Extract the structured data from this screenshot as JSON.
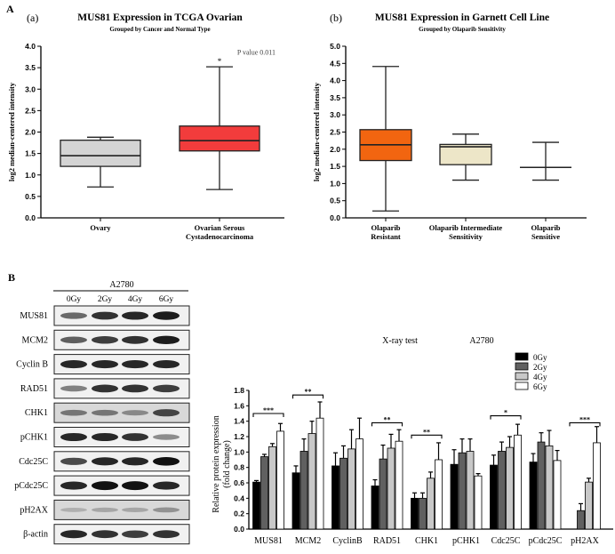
{
  "panel_labels": {
    "a": "A",
    "b": "B"
  },
  "chart_data": [
    {
      "type": "box",
      "tag": "(a)",
      "title": "MUS81 Expression in TCGA Ovarian",
      "subtitle": "Grouped by Cancer and Normal Type",
      "ylabel": "log2 median-centered intensity",
      "ylim": [
        0,
        4
      ],
      "yticks": [
        "0.0",
        "0.5",
        "1.0",
        "1.5",
        "2.0",
        "2.5",
        "3.0",
        "3.5",
        "4.0"
      ],
      "annotation": "P value 0.011",
      "groups": [
        {
          "label": [
            "Ovary"
          ],
          "min": 0.72,
          "q1": 1.2,
          "median": 1.45,
          "q3": 1.81,
          "max": 1.88,
          "color": "#d4d4d4"
        },
        {
          "label": [
            "Ovarian Serous",
            "Cystadenocarcinoma"
          ],
          "min": 0.66,
          "q1": 1.56,
          "median": 1.8,
          "q3": 2.14,
          "max": 3.52,
          "color": "#f23c3c",
          "sig": "*"
        }
      ]
    },
    {
      "type": "box",
      "tag": "(b)",
      "title": "MUS81 Expression in Garnett Cell Line",
      "subtitle": "Grouped by Olaparib Sensitivity",
      "ylabel": "log2 median-centered intensity",
      "ylim": [
        0,
        5
      ],
      "yticks": [
        "0.0",
        "0.5",
        "1.0",
        "1.5",
        "2.0",
        "2.5",
        "3.0",
        "3.5",
        "4.0",
        "4.5",
        "5.0"
      ],
      "groups": [
        {
          "label": [
            "Olaparib",
            "Resistant"
          ],
          "min": 0.2,
          "q1": 1.67,
          "median": 2.13,
          "q3": 2.57,
          "max": 4.41,
          "color": "#f26510"
        },
        {
          "label": [
            "Olaparib Intermediate",
            "Sensitivity"
          ],
          "min": 1.1,
          "q1": 1.55,
          "median": 2.07,
          "q3": 2.14,
          "max": 2.44,
          "color": "#ede6c8"
        },
        {
          "label": [
            "Olaparib",
            "Sensitive"
          ],
          "min": 1.1,
          "q1": 1.47,
          "median": 1.47,
          "q3": 1.47,
          "max": 2.2,
          "color": "#ffffff"
        }
      ]
    },
    {
      "type": "bar",
      "title": "X-ray test",
      "cell_line": "A2780",
      "ylabel": [
        "Relative protein expression",
        "(fold change)"
      ],
      "ylim": [
        0,
        1.8
      ],
      "yticks": [
        "0.0",
        "0.2",
        "0.4",
        "0.6",
        "0.8",
        "1.0",
        "1.2",
        "1.4",
        "1.6",
        "1.8"
      ],
      "categories": [
        "MUS81",
        "MCM2",
        "CyclinB",
        "RAD51",
        "CHK1",
        "pCHK1",
        "Cdc25C",
        "pCdc25C",
        "pH2AX"
      ],
      "series": [
        {
          "name": "0Gy",
          "color": "#000000",
          "values": [
            0.61,
            0.73,
            0.82,
            0.56,
            0.4,
            0.84,
            0.83,
            0.87,
            0
          ],
          "errors": [
            0.02,
            0.09,
            0.17,
            0.08,
            0.07,
            0.19,
            0.13,
            0.11,
            0
          ]
        },
        {
          "name": "2Gy",
          "color": "#606060",
          "values": [
            0.94,
            1.01,
            0.92,
            0.91,
            0.4,
            0.99,
            1.01,
            1.13,
            0.24
          ],
          "errors": [
            0.03,
            0.16,
            0.16,
            0.18,
            0.07,
            0.18,
            0.12,
            0.12,
            0.09
          ]
        },
        {
          "name": "4Gy",
          "color": "#c8c8c8",
          "values": [
            1.07,
            1.24,
            1.04,
            1.05,
            0.66,
            1.01,
            1.06,
            1.08,
            0.61
          ],
          "errors": [
            0.04,
            0.16,
            0.25,
            0.18,
            0.08,
            0.16,
            0.14,
            0.2,
            0.05
          ]
        },
        {
          "name": "6Gy",
          "color": "#ffffff",
          "values": [
            1.27,
            1.44,
            1.17,
            1.14,
            0.9,
            0.69,
            1.22,
            0.89,
            1.12
          ],
          "errors": [
            0.1,
            0.21,
            0.27,
            0.15,
            0.22,
            0.03,
            0.14,
            0.13,
            0.21
          ]
        }
      ],
      "significance": [
        {
          "category": 0,
          "label": "***",
          "level": 1.5
        },
        {
          "category": 1,
          "label": "**",
          "level": 1.74
        },
        {
          "category": 3,
          "label": "**",
          "level": 1.38
        },
        {
          "category": 4,
          "label": "**",
          "level": 1.22
        },
        {
          "category": 6,
          "label": "*",
          "level": 1.47
        },
        {
          "category": 8,
          "label": "***",
          "level": 1.38
        }
      ]
    }
  ],
  "blot": {
    "cell_line": "A2780",
    "lanes": [
      "0Gy",
      "2Gy",
      "4Gy",
      "6Gy"
    ],
    "rows": [
      {
        "label": "MUS81",
        "intensity": [
          0.55,
          0.8,
          0.85,
          0.9
        ]
      },
      {
        "label": "MCM2",
        "intensity": [
          0.6,
          0.75,
          0.8,
          0.9
        ]
      },
      {
        "label": "Cyclin B",
        "intensity": [
          0.85,
          0.85,
          0.85,
          0.85
        ]
      },
      {
        "label": "RAD51",
        "intensity": [
          0.45,
          0.8,
          0.8,
          0.75
        ]
      },
      {
        "label": "CHK1",
        "intensity": [
          0.45,
          0.45,
          0.35,
          0.7
        ]
      },
      {
        "label": "pCHK1",
        "intensity": [
          0.85,
          0.85,
          0.8,
          0.4
        ]
      },
      {
        "label": "Cdc25C",
        "intensity": [
          0.7,
          0.85,
          0.85,
          0.95
        ]
      },
      {
        "label": "pCdc25C",
        "intensity": [
          0.85,
          1,
          1,
          0.85
        ]
      },
      {
        "label": "pH2AX",
        "intensity": [
          0.15,
          0.2,
          0.2,
          0.3
        ]
      },
      {
        "label": "β-actin",
        "intensity": [
          0.85,
          0.8,
          0.75,
          0.8
        ]
      }
    ]
  }
}
